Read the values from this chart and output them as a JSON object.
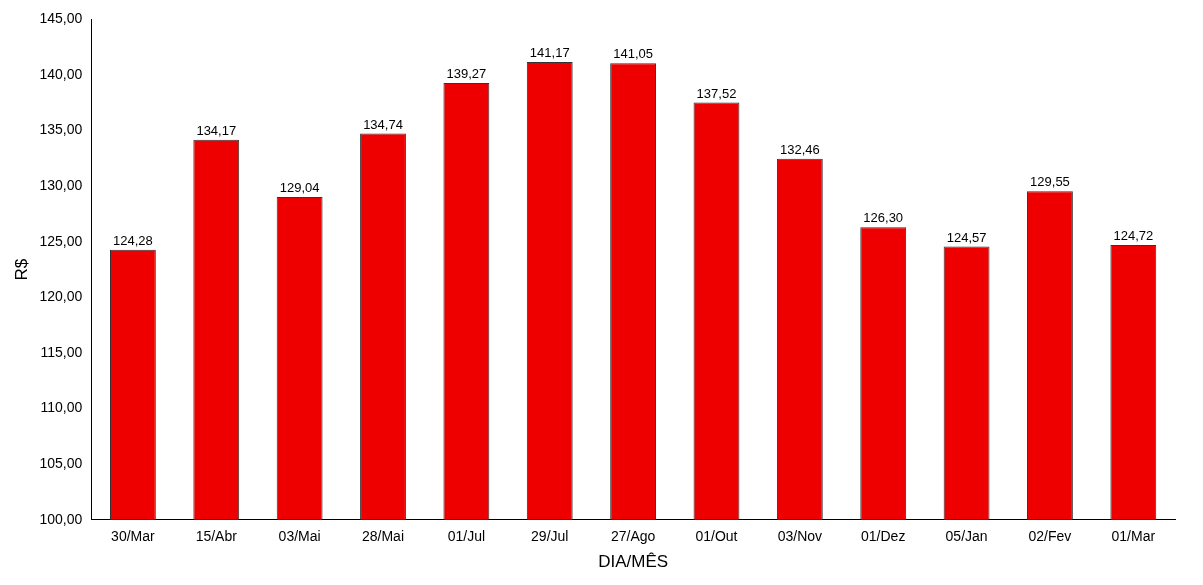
{
  "chart_data": {
    "type": "bar",
    "xlabel": "DIA/MÊS",
    "ylabel": "R$",
    "categories": [
      "30/Mar",
      "15/Abr",
      "03/Mai",
      "28/Mai",
      "01/Jul",
      "29/Jul",
      "27/Ago",
      "01/Out",
      "03/Nov",
      "01/Dez",
      "05/Jan",
      "02/Fev",
      "01/Mar"
    ],
    "values": [
      124.28,
      134.17,
      129.04,
      134.74,
      139.27,
      141.17,
      141.05,
      137.52,
      132.46,
      126.3,
      124.57,
      129.55,
      124.72
    ],
    "value_labels": [
      "124,28",
      "134,17",
      "129,04",
      "134,74",
      "139,27",
      "141,17",
      "141,05",
      "137,52",
      "132,46",
      "126,30",
      "124,57",
      "129,55",
      "124,72"
    ],
    "color": "#ee0000",
    "ylim": [
      100,
      145
    ],
    "yticks": [
      {
        "value": 100,
        "label": "100,00"
      },
      {
        "value": 105,
        "label": "105,00"
      },
      {
        "value": 110,
        "label": "110,00"
      },
      {
        "value": 115,
        "label": "115,00"
      },
      {
        "value": 120,
        "label": "120,00"
      },
      {
        "value": 125,
        "label": "125,00"
      },
      {
        "value": 130,
        "label": "130,00"
      },
      {
        "value": 135,
        "label": "135,00"
      },
      {
        "value": 140,
        "label": "140,00"
      },
      {
        "value": 145,
        "label": "145,00"
      }
    ],
    "grid": false,
    "legend": false
  }
}
